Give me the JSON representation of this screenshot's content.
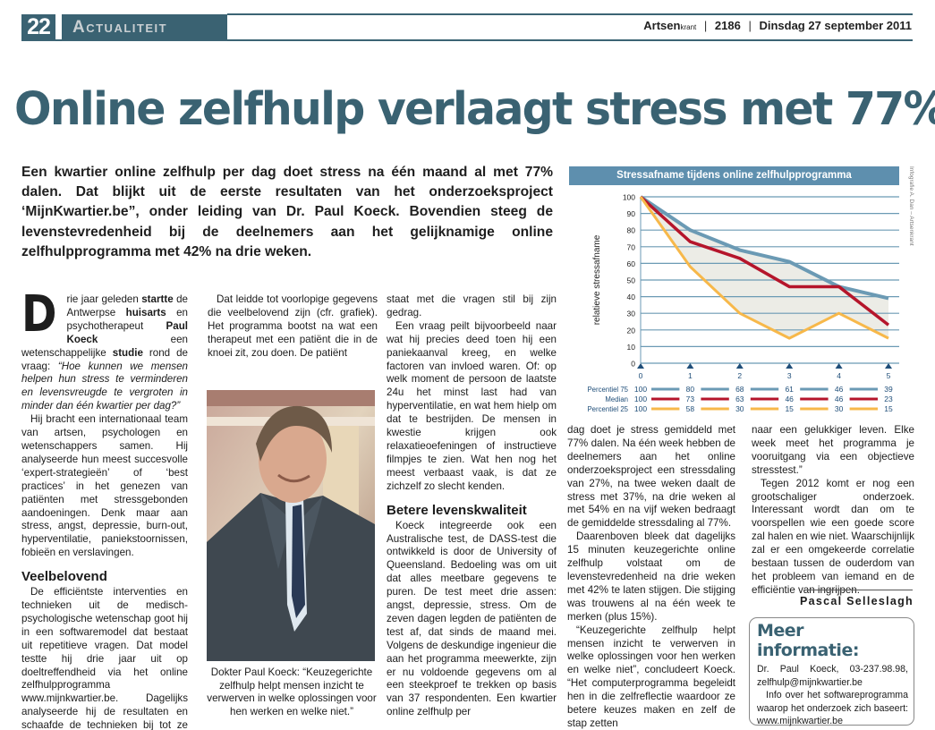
{
  "header": {
    "page_number": "22",
    "section": "Actualiteit",
    "publication_brand": "Artsen",
    "publication_brand_small": "krant",
    "issue": "2186",
    "date": "Dinsdag 27 september 2011"
  },
  "article": {
    "headline": "Online zelfhulp verlaagt stress met 77%",
    "lead": "Een kwartier online zelfhulp per dag doet stress na één maand al met 77% dalen. Dat blijkt uit de eerste resultaten van het onderzoeksproject ‘MijnKwartier.be”, onder leiding van Dr. Paul Koeck. Bovendien steeg de levenstevredenheid bij de deelnemers aan het gelijknamige online zelfhulpprogramma met 42% na drie weken.",
    "col1": {
      "dropcap": "D",
      "p1_a": "rie jaar geleden ",
      "p1_b": "startte",
      "p1_c": " de Antwerpse ",
      "p1_d": "huisarts",
      "p1_e": " en psychotherapeut ",
      "p1_f": "Paul Koeck",
      "p1_g": " een wetenschappelijke ",
      "p1_h": "studie",
      "p1_i": " rond de vraag: ",
      "p1_quote": "“Hoe kunnen we mensen helpen hun stress te verminderen en levensvreugde te vergroten in minder dan één kwartier per dag?”",
      "p2": "Hij bracht een internationaal team van artsen, psychologen en wetenschappers samen. Hij analyseerde hun meest succesvolle ‘expert-strategieën’ of ‘best practices’ in het genezen van patiënten met stressgebonden aandoeningen. Denk maar aan stress, angst, depressie, burn-out, hyperventilatie, paniekstoornissen, fobieën en verslavingen.",
      "subhead": "Veelbelovend",
      "p3": "De efficiëntste interventies en technieken uit de medisch-psychologische wetenschap goot hij in een softwaremodel dat bestaat uit repetitieve vragen. Dat model testte hij drie jaar uit op doeltreffendheid via het online zelfhulpprogramma www.mijnkwartier.be. Dagelijks analyseerde hij de resultaten en schaafde de technieken bij tot ze een optimaal effect hadden."
    },
    "col2": {
      "p1": "Dat leidde tot voorlopige gegevens die veelbelovend zijn (cfr. grafiek). Het programma bootst na wat een therapeut met een patiënt die in de knoei zit, zou doen. De patiënt"
    },
    "col3": {
      "p1": "staat met die vragen stil bij zijn gedrag.",
      "p2": "Een vraag peilt bijvoorbeeld naar wat hij precies deed toen hij een paniekaanval kreeg, en welke factoren van invloed waren. Of: op welk moment de persoon de laatste 24u het minst last had van hyperventilatie, en wat hem hielp om dat te bestrijden. De mensen in kwestie krijgen ook relaxatieoefeningen of instructieve filmpjes te zien. Wat hen nog het meest verbaast vaak, is dat ze zichzelf zo slecht kenden.",
      "subhead": "Betere levenskwaliteit",
      "p3": "Koeck integreerde ook een Australische test, de DASS-test die ontwikkeld is door de University of Queensland. Bedoeling was om uit dat alles meetbare gegevens te puren. De test meet drie assen: angst, depressie, stress. Om de zeven dagen legden de patiënten de test af, dat sinds de maand mei.  Volgens de deskundige ingenieur die aan het programma meewerkte, zijn er nu voldoende gegevens om al een steekproef te trekken op basis van 37 respondenten. Een kwartier online zelfhulp per"
    },
    "col4": {
      "p1": "dag doet je stress gemiddeld met 77% dalen. Na één week hebben de deelnemers aan het online onderzoeksproject een stressdaling van 27%, na twee weken daalt de stress met 37%, na drie weken al met 54% en na vijf weken bedraagt de gemiddelde stressdaling al 77%.",
      "p2": "Daarenboven bleek dat dagelijks 15 minuten keuzegerichte online zelfhulp volstaat om de levenstevredenheid na drie weken met 42% te laten stijgen. Die stijging was trouwens al na één week te merken (plus 15%).",
      "p3": "“Keuzegerichte zelfhulp helpt mensen inzicht te verwerven in welke oplossingen voor hen werken en welke niet”, concludeert Koeck. “Het computerprogramma begeleidt hen in die zelfreflectie waardoor ze betere keuzes maken en zelf de stap zetten"
    },
    "col5": {
      "p1": "naar een gelukkiger leven. Elke week meet het programma je vooruitgang via een objectieve stresstest.”",
      "p2": "Tegen 2012 komt er nog een grootschaliger onderzoek. Interessant wordt dan om te voorspellen wie een goede score zal halen en wie niet. Waarschijnlijk zal er een omgekeerde correlatie bestaan tussen de ouderdom van het probleem van iemand en de efficiëntie van ingrijpen."
    },
    "byline": "Pascal Selleslagh",
    "photo_caption": "Dokter Paul Koeck: “Keuzegerichte zelfhulp helpt mensen inzicht te verwerven in welke oplossingen voor hen werken en welke niet.”",
    "infobox": {
      "title": "Meer informatie:",
      "p1": "Dr. Paul Koeck, 03-237.98.98, zelfhulp@mijnkwartier.be",
      "p2": "Info over het softwareprogramma waarop het onderzoek zich baseert: www.mijnkwartier.be"
    }
  },
  "chart": {
    "credit": "Infografie A. Dan – Artsenkrant"
  },
  "chart_data": {
    "type": "line",
    "title": "Stressafname tijdens online zelfhulpprogramma",
    "xlabel": "",
    "ylabel": "relatieve stressafname",
    "x": [
      0,
      1,
      2,
      3,
      4,
      5
    ],
    "ylim": [
      0,
      100
    ],
    "yticks": [
      0,
      10,
      20,
      30,
      40,
      50,
      60,
      70,
      80,
      90,
      100
    ],
    "grid": true,
    "legend_position": "bottom (data table)",
    "series": [
      {
        "name": "Percentiel 75",
        "color": "#6b9ab4",
        "values": [
          100,
          80,
          68,
          61,
          46,
          39
        ]
      },
      {
        "name": "Median",
        "color": "#b5152b",
        "values": [
          100,
          73,
          63,
          46,
          46,
          23
        ]
      },
      {
        "name": "Percentiel 25",
        "color": "#f7b84a",
        "values": [
          100,
          58,
          30,
          15,
          30,
          15
        ]
      }
    ]
  }
}
